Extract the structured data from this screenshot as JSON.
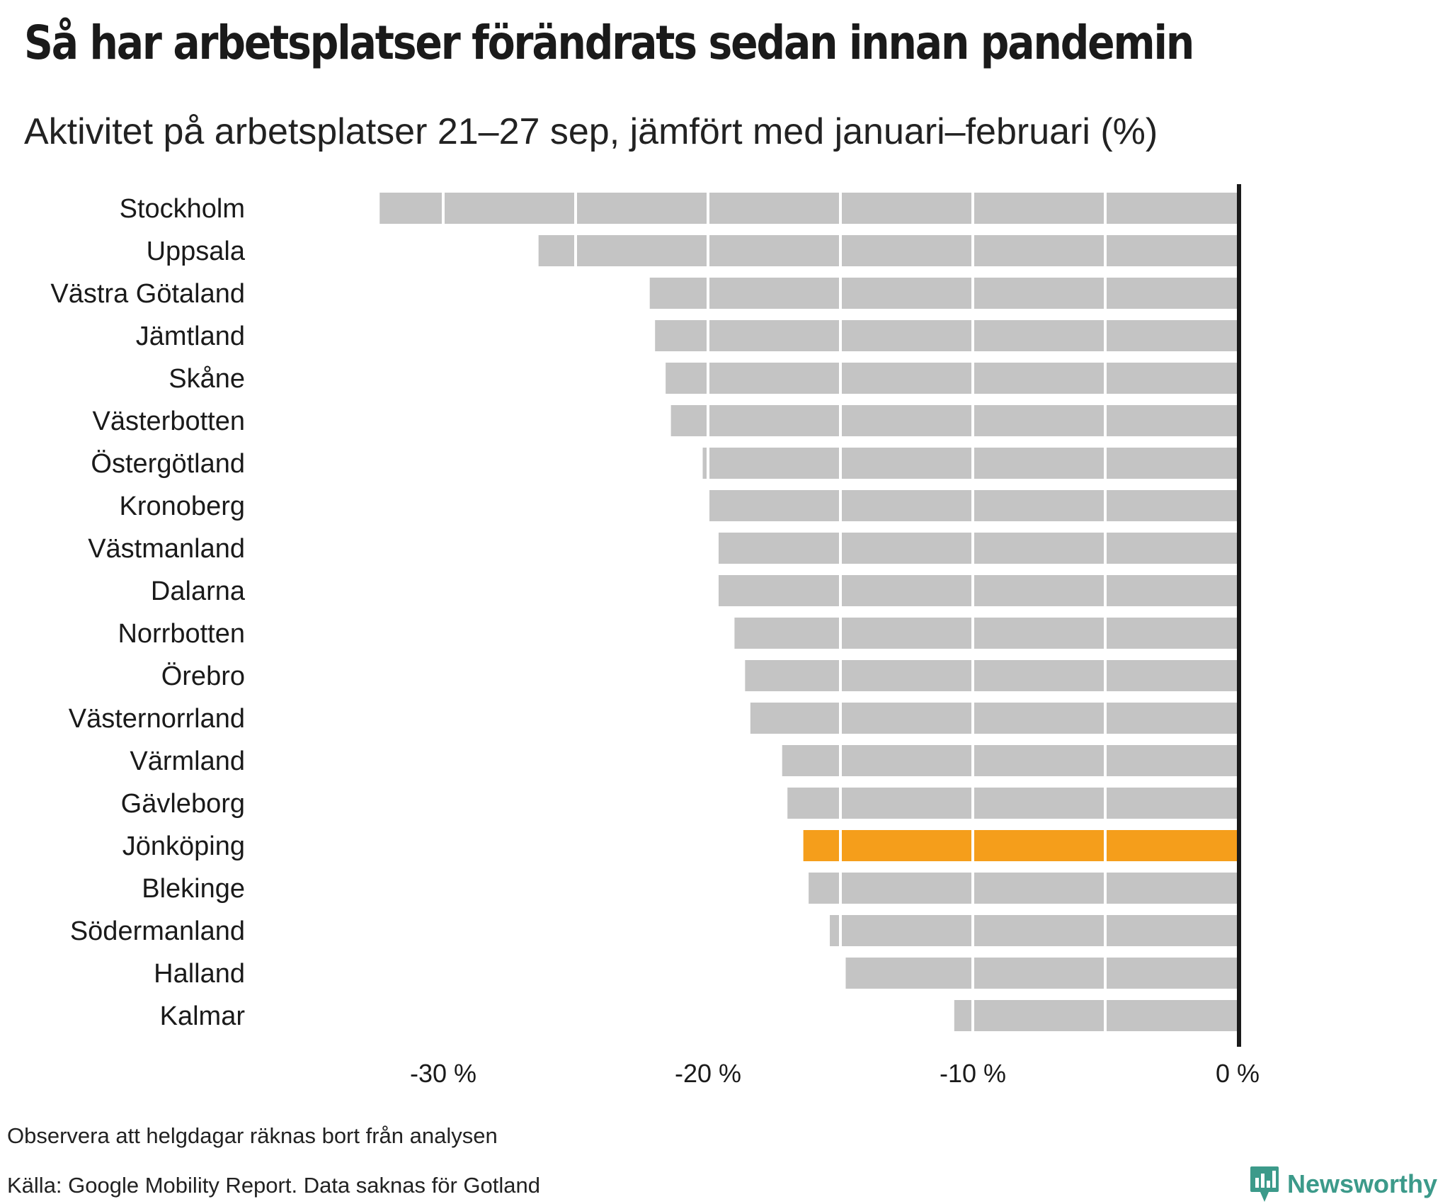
{
  "title": "Så har arbetsplatser förändrats sedan innan pandemin",
  "subtitle": "Aktivitet på arbetsplatser 21–27 sep, jämfört med januari–februari (%)",
  "footnote": "Observera att helgdagar räknas bort från analysen",
  "source": "Källa: Google Mobility Report. Data saknas för Gotland",
  "brand": {
    "name": "Newsworthy",
    "color": "#3c9a8a"
  },
  "chart_data": {
    "type": "bar",
    "orientation": "horizontal",
    "categories": [
      "Stockholm",
      "Uppsala",
      "Västra Götaland",
      "Jämtland",
      "Skåne",
      "Västerbotten",
      "Östergötland",
      "Kronoberg",
      "Västmanland",
      "Dalarna",
      "Norrbotten",
      "Örebro",
      "Västernorrland",
      "Värmland",
      "Gävleborg",
      "Jönköping",
      "Blekinge",
      "Södermanland",
      "Halland",
      "Kalmar"
    ],
    "values": [
      -32.4,
      -26.4,
      -22.2,
      -22.0,
      -21.6,
      -21.4,
      -20.2,
      -20.0,
      -19.6,
      -19.6,
      -19.0,
      -18.6,
      -18.4,
      -17.2,
      -17.0,
      -16.4,
      -16.2,
      -15.4,
      -14.8,
      -10.7
    ],
    "highlight": "Jönköping",
    "xlim": [
      -33,
      0
    ],
    "xticks": [
      -30,
      -20,
      -10,
      0
    ],
    "xtick_labels": [
      "-30 %",
      "-20 %",
      "-10 %",
      "0 %"
    ],
    "grid_lines": [
      -30,
      -25,
      -20,
      -15,
      -10,
      -5
    ],
    "grid": true,
    "colors": {
      "bar": "#c4c4c4",
      "highlight": "#f59e1b",
      "axis": "#1a1a1a",
      "grid": "#ffffff"
    }
  }
}
